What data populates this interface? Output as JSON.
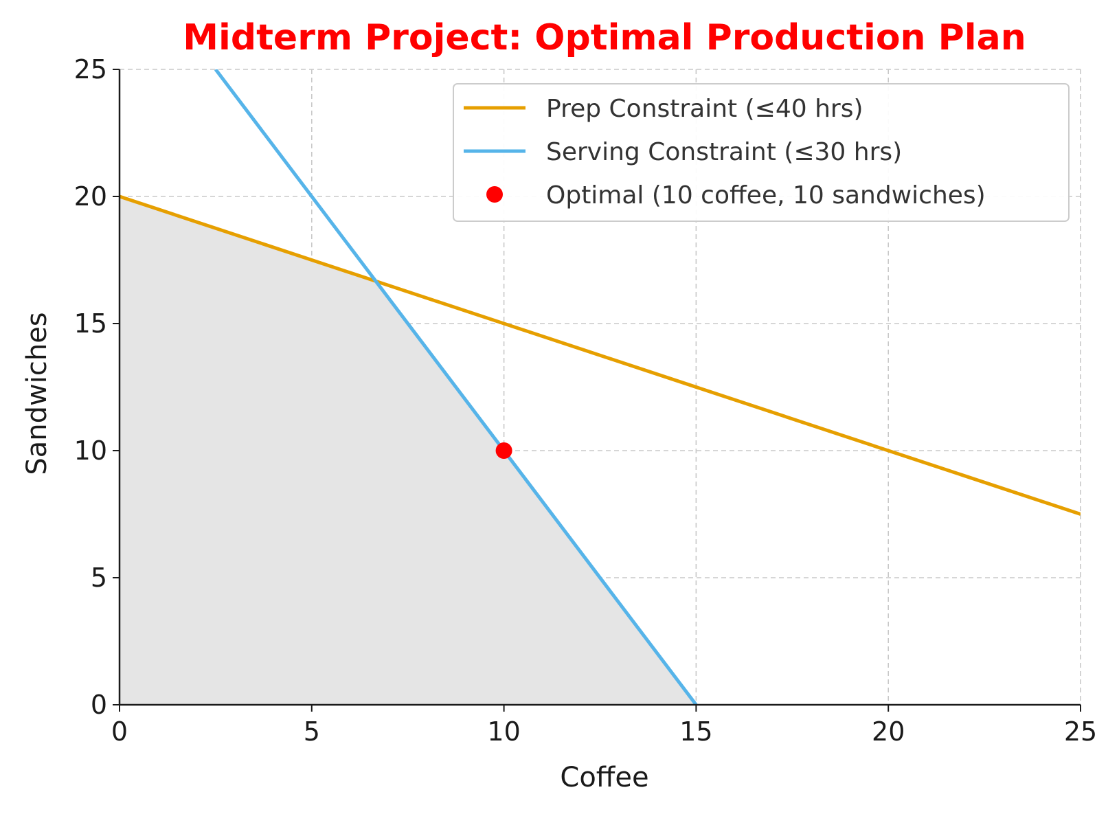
{
  "chart_data": {
    "type": "line",
    "title": "Midterm Project: Optimal Production Plan",
    "title_color": "#ff0000",
    "xlabel": "Coffee",
    "ylabel": "Sandwiches",
    "xlim": [
      0,
      25
    ],
    "ylim": [
      0,
      25
    ],
    "xticks": [
      0,
      5,
      10,
      15,
      20,
      25
    ],
    "yticks": [
      0,
      5,
      10,
      15,
      20,
      25
    ],
    "grid": true,
    "legend_position": "top-right",
    "series": [
      {
        "name": "Prep Constraint (≤40 hrs)",
        "color": "#e69f00",
        "x": [
          0,
          25
        ],
        "y": [
          20,
          7.5
        ]
      },
      {
        "name": "Serving Constraint (≤30 hrs)",
        "color": "#56b4e9",
        "x": [
          2.5,
          15
        ],
        "y": [
          25,
          0
        ]
      }
    ],
    "point": {
      "name": "Optimal (10 coffee, 10 sandwiches)",
      "color": "#ff0000",
      "x": 10,
      "y": 10
    },
    "feasible_region": {
      "color": "#e5e5e5",
      "x": [
        0,
        0,
        6.667,
        15
      ],
      "y": [
        0,
        20,
        16.667,
        0
      ]
    }
  }
}
